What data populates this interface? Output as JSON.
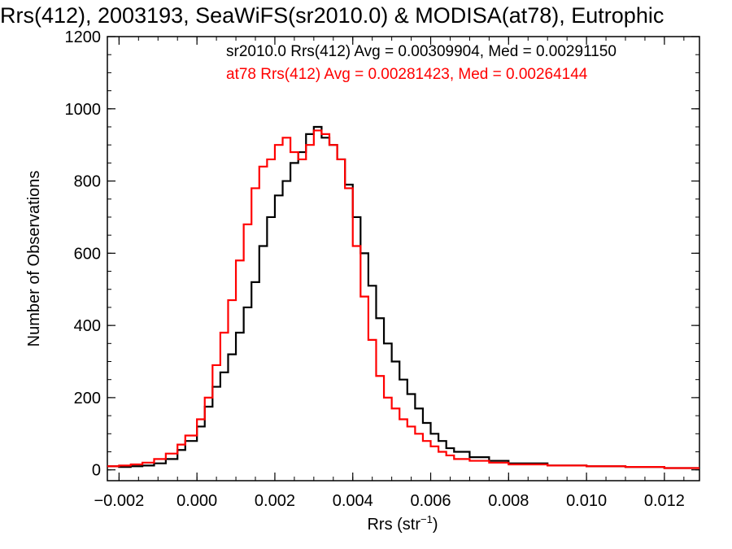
{
  "chart_data": {
    "type": "line",
    "title": "Rrs(412), 2003193, SeaWiFS(sr2010.0) & MODISA(at78), Eutrophic",
    "xlabel": "Rrs (str",
    "xlabel_sup": "−1",
    "xlabel_close": ")",
    "ylabel": "Number of Observations",
    "xlim": [
      -0.0023,
      0.0129
    ],
    "ylim": [
      -30,
      1200
    ],
    "xticks": [
      -0.002,
      0.0,
      0.002,
      0.004,
      0.006,
      0.008,
      0.01,
      0.012
    ],
    "xtick_labels": [
      "−0.002",
      "0.000",
      "0.002",
      "0.004",
      "0.006",
      "0.008",
      "0.010",
      "0.012"
    ],
    "yticks": [
      0,
      200,
      400,
      600,
      800,
      1000,
      1200
    ],
    "ytick_labels": [
      "0",
      "200",
      "400",
      "600",
      "800",
      "1000",
      "1200"
    ],
    "grid": false,
    "annotations": [
      {
        "text": "sr2010.0 Rrs(412) Avg = 0.00309904, Med = 0.00291150",
        "color": "#000000"
      },
      {
        "text": "at78 Rrs(412) Avg = 0.00281423, Med = 0.00264144",
        "color": "#ff0000"
      }
    ],
    "series": [
      {
        "color": "#000000",
        "x": [
          -0.0023,
          -0.002,
          -0.0017,
          -0.0014,
          -0.0011,
          -0.0008,
          -0.0005,
          -0.0003,
          0.0,
          0.0002,
          0.0004,
          0.0006,
          0.0008,
          0.001,
          0.0012,
          0.0014,
          0.0016,
          0.0018,
          0.002,
          0.0022,
          0.0024,
          0.0026,
          0.0028,
          0.003,
          0.0032,
          0.0034,
          0.0036,
          0.0038,
          0.004,
          0.0042,
          0.0044,
          0.0046,
          0.0048,
          0.005,
          0.0052,
          0.0054,
          0.0056,
          0.0058,
          0.006,
          0.0062,
          0.0064,
          0.0066,
          0.007,
          0.0075,
          0.008,
          0.009,
          0.01,
          0.011,
          0.012,
          0.0129
        ],
        "y": [
          10,
          8,
          10,
          12,
          18,
          30,
          55,
          80,
          120,
          175,
          230,
          270,
          320,
          380,
          450,
          520,
          620,
          700,
          760,
          800,
          850,
          880,
          930,
          950,
          920,
          900,
          860,
          790,
          700,
          600,
          510,
          420,
          350,
          300,
          250,
          210,
          170,
          130,
          100,
          80,
          60,
          50,
          35,
          25,
          18,
          12,
          10,
          8,
          5,
          5
        ]
      },
      {
        "color": "#ff0000",
        "x": [
          -0.0023,
          -0.002,
          -0.0017,
          -0.0014,
          -0.0011,
          -0.0008,
          -0.0005,
          -0.0003,
          0.0,
          0.0002,
          0.0004,
          0.0006,
          0.0008,
          0.001,
          0.0012,
          0.0014,
          0.0016,
          0.0018,
          0.002,
          0.0022,
          0.0024,
          0.0026,
          0.0028,
          0.003,
          0.0032,
          0.0034,
          0.0036,
          0.0038,
          0.004,
          0.0042,
          0.0044,
          0.0046,
          0.0048,
          0.005,
          0.0052,
          0.0054,
          0.0056,
          0.0058,
          0.006,
          0.0062,
          0.0064,
          0.0066,
          0.007,
          0.0075,
          0.008,
          0.009,
          0.01,
          0.011,
          0.012,
          0.0129
        ],
        "y": [
          10,
          12,
          15,
          20,
          30,
          45,
          70,
          95,
          140,
          200,
          290,
          380,
          470,
          580,
          680,
          780,
          840,
          860,
          900,
          920,
          880,
          860,
          900,
          940,
          930,
          900,
          860,
          780,
          620,
          480,
          360,
          260,
          200,
          170,
          140,
          120,
          100,
          80,
          65,
          50,
          40,
          30,
          25,
          20,
          15,
          12,
          10,
          8,
          5,
          5
        ]
      }
    ]
  }
}
